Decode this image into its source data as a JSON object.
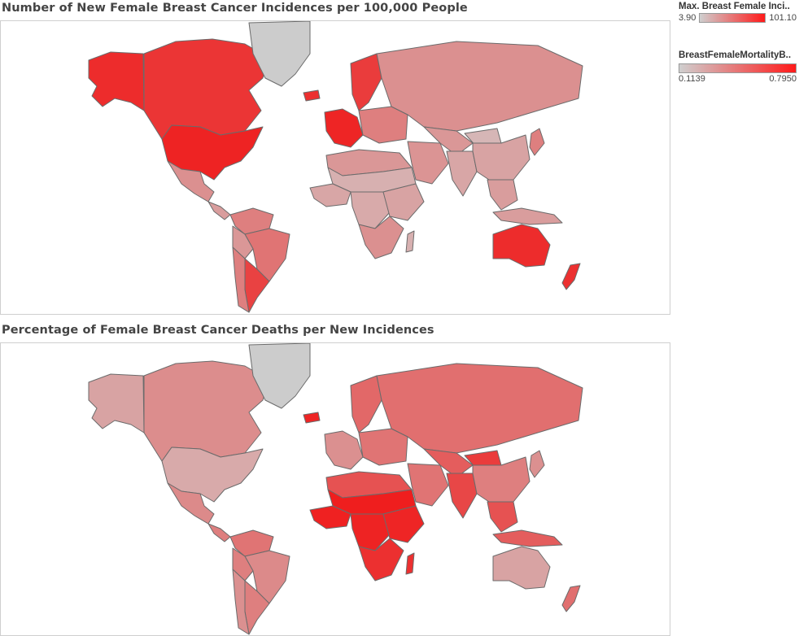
{
  "maps": [
    {
      "title": "Number of New Female Breast Cancer Incidences per 100,000 People",
      "measure": "Max. Breast Female Incidence"
    },
    {
      "title": "Percentage of Female Breast Cancer Deaths per New Incidences",
      "measure": "BreastFemaleMortality"
    }
  ],
  "legends": [
    {
      "title": "Max. Breast Female Inci..",
      "min": "3.90",
      "max": "101.10",
      "color_low": "#cfcfcf",
      "color_high": "#ff1a1a"
    },
    {
      "title": "BreastFemaleMortalityB..",
      "min": "0.1139",
      "max": "0.7950",
      "color_low": "#cfcfcf",
      "color_high": "#ff1a1a"
    }
  ],
  "colors": {
    "no_data": "#cccccc",
    "border": "#6b6b6b",
    "frame": "#cfcfcf"
  },
  "regions": {
    "top": {
      "alaska": 0.92,
      "canada": 0.88,
      "usa": 0.96,
      "greenland": -1,
      "mexico": 0.45,
      "central_america": 0.35,
      "south_america_north": 0.55,
      "brazil": 0.6,
      "peru_bolivia": 0.4,
      "argentina": 0.82,
      "chile": 0.55,
      "iceland": 0.9,
      "scandinavia": 0.85,
      "western_europe": 0.95,
      "eastern_europe": 0.55,
      "russia": 0.45,
      "north_africa": 0.4,
      "sahel": 0.2,
      "west_africa": 0.28,
      "central_africa": 0.25,
      "east_africa": 0.3,
      "southern_africa": 0.45,
      "middle_east": 0.42,
      "central_asia": 0.4,
      "india": 0.28,
      "china": 0.3,
      "mongolia": 0.15,
      "southeast_asia": 0.35,
      "japan": 0.55,
      "indonesia": 0.35,
      "australia": 0.92,
      "new_zealand": 0.9,
      "madagascar": 0.2
    },
    "bottom": {
      "alaska": 0.3,
      "canada": 0.48,
      "usa": 0.25,
      "greenland": -1,
      "mexico": 0.5,
      "central_america": 0.55,
      "south_america_north": 0.6,
      "brazil": 0.5,
      "peru_bolivia": 0.55,
      "argentina": 0.55,
      "chile": 0.45,
      "iceland": 0.95,
      "scandinavia": 0.65,
      "western_europe": 0.45,
      "eastern_europe": 0.6,
      "russia": 0.62,
      "north_africa": 0.75,
      "sahel": 0.98,
      "west_africa": 0.97,
      "central_africa": 0.96,
      "east_africa": 0.95,
      "southern_africa": 0.9,
      "middle_east": 0.6,
      "central_asia": 0.7,
      "india": 0.8,
      "china": 0.55,
      "mongolia": 0.85,
      "southeast_asia": 0.75,
      "japan": 0.45,
      "indonesia": 0.7,
      "australia": 0.3,
      "new_zealand": 0.62,
      "madagascar": 0.9
    }
  }
}
